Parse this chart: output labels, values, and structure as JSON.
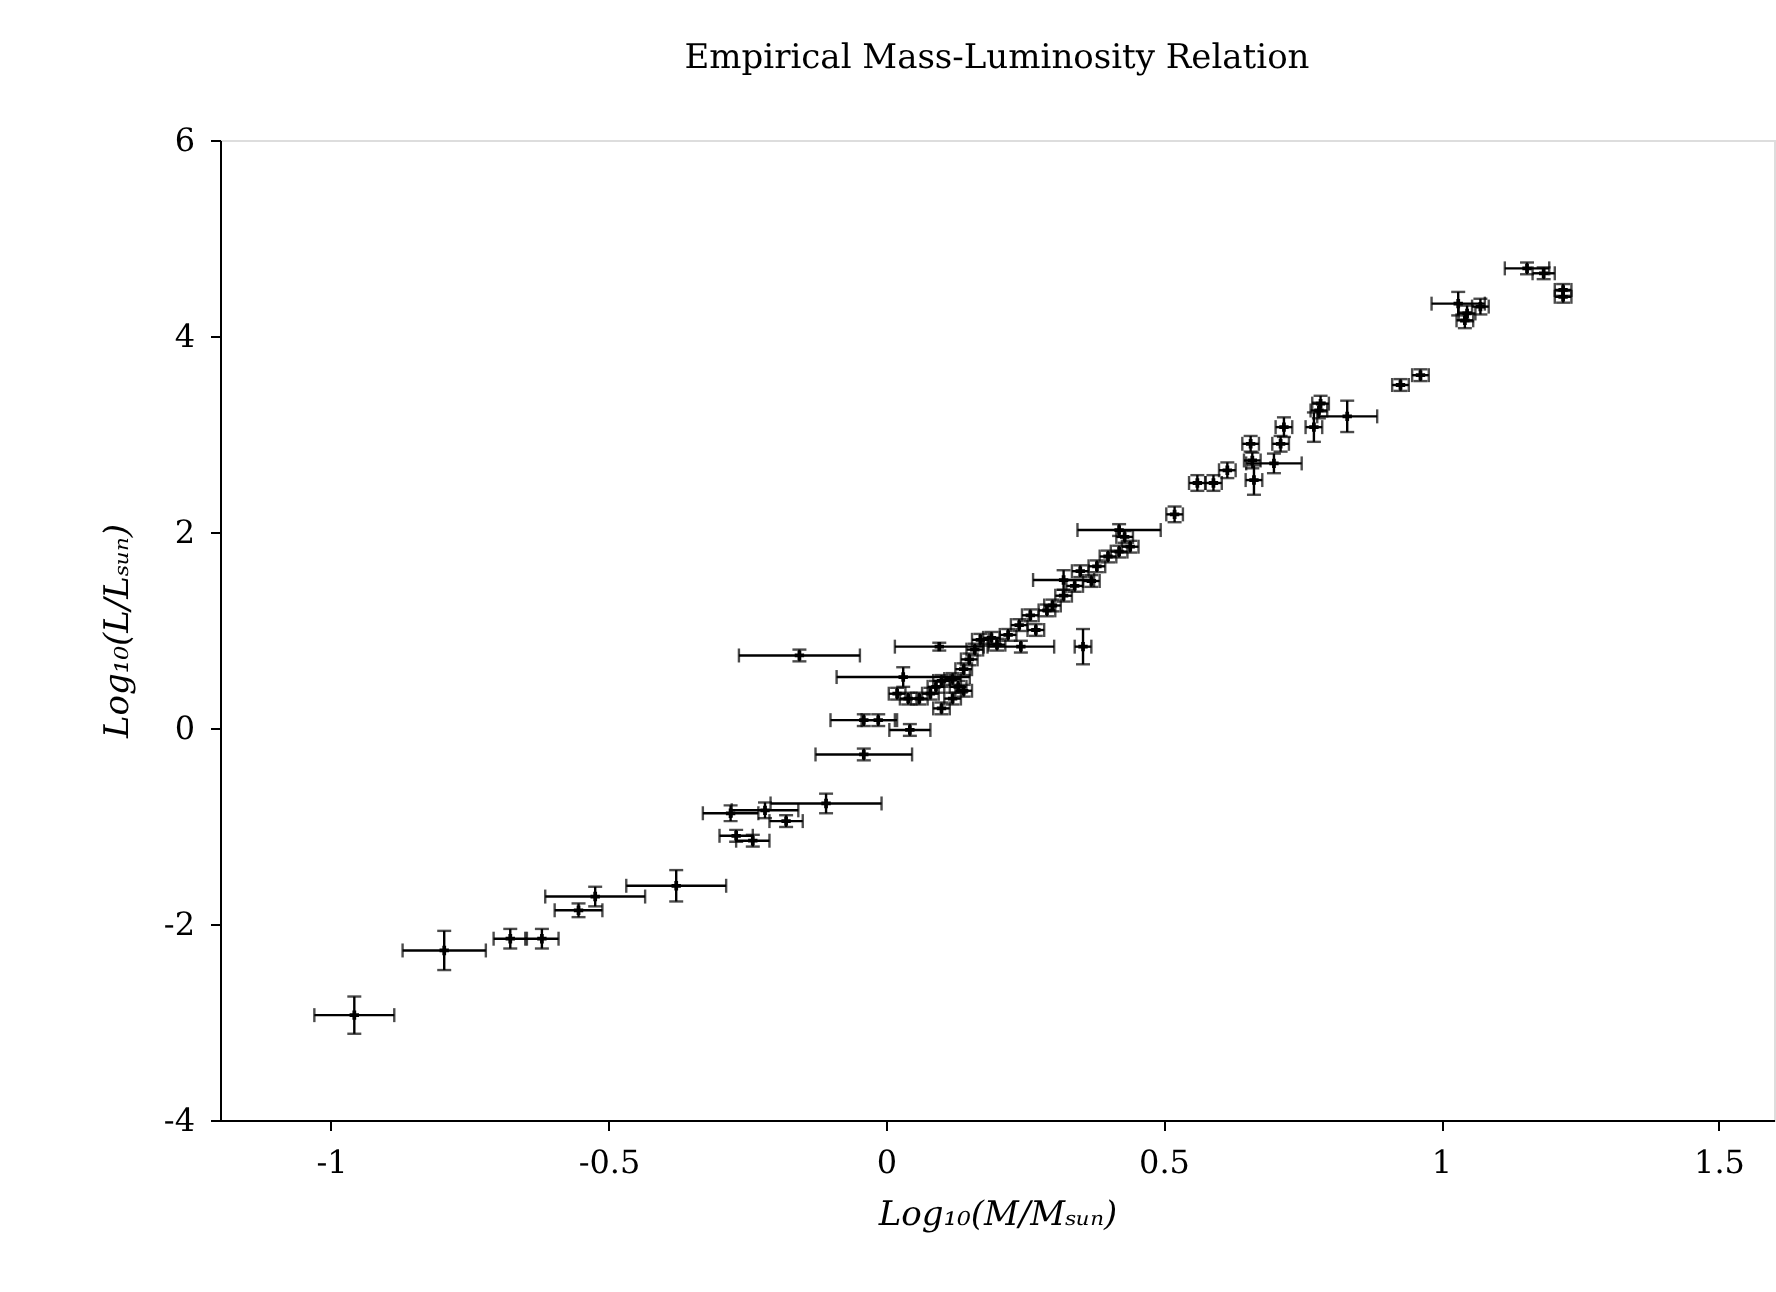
{
  "chart_data": {
    "type": "scatter",
    "title": "Empirical Mass-Luminosity Relation",
    "xlabel": "Log₁₀(M/Mₛᵤₙ)",
    "ylabel": "Log₁₀(L/Lₛᵤₙ)",
    "xlim": [
      -1.2,
      1.6
    ],
    "xticks": [
      -1,
      -0.5,
      0,
      0.5,
      1,
      1.5
    ],
    "ylim": [
      -4,
      6
    ],
    "yticks": [
      -4,
      -2,
      0,
      2,
      4,
      6
    ],
    "grid": false,
    "marker": "cross",
    "series": [
      {
        "color": "#000000",
        "x": [
          -0.958,
          -0.796,
          -0.677,
          -0.62,
          -0.554,
          -0.524,
          -0.378,
          -0.28,
          -0.27,
          -0.24,
          -0.218,
          -0.18,
          -0.108,
          -0.156,
          0.096,
          0.031,
          -0.04,
          -0.014,
          0.043,
          -0.04,
          0.243,
          0.355,
          0.32,
          0.42,
          0.02,
          0.04,
          0.06,
          0.08,
          0.09,
          0.1,
          0.12,
          0.13,
          0.14,
          0.15,
          0.16,
          0.17,
          0.19,
          0.2,
          0.22,
          0.24,
          0.26,
          0.27,
          0.29,
          0.3,
          0.32,
          0.34,
          0.35,
          0.37,
          0.38,
          0.4,
          0.42,
          0.43,
          0.44,
          0.1,
          0.12,
          0.14,
          0.52,
          0.561,
          0.59,
          0.615,
          0.657,
          0.663,
          0.66,
          0.699,
          0.711,
          0.717,
          0.771,
          0.78,
          0.783,
          0.831,
          0.927,
          0.963,
          1.031,
          1.043,
          1.047,
          1.071,
          1.155,
          1.185,
          1.22,
          1.22
        ],
        "values": [
          -2.93,
          -2.27,
          -2.15,
          -2.15,
          -1.86,
          -1.72,
          -1.61,
          -0.87,
          -1.1,
          -1.15,
          -0.84,
          -0.95,
          -0.77,
          0.74,
          0.83,
          0.52,
          0.08,
          0.08,
          -0.02,
          -0.27,
          0.83,
          0.83,
          1.51,
          2.02,
          0.35,
          0.3,
          0.3,
          0.35,
          0.42,
          0.48,
          0.5,
          0.42,
          0.6,
          0.7,
          0.8,
          0.9,
          0.92,
          0.85,
          0.95,
          1.05,
          1.15,
          1.0,
          1.2,
          1.25,
          1.35,
          1.45,
          1.6,
          1.5,
          1.65,
          1.75,
          1.8,
          1.95,
          1.85,
          0.2,
          0.3,
          0.38,
          2.18,
          2.5,
          2.5,
          2.63,
          2.9,
          2.53,
          2.73,
          2.7,
          2.9,
          3.07,
          3.07,
          3.24,
          3.31,
          3.18,
          3.5,
          3.6,
          4.33,
          4.16,
          4.23,
          4.3,
          4.69,
          4.64,
          4.47,
          4.4
        ],
        "xerrors": [
          0.072,
          0.075,
          0.03,
          0.03,
          0.043,
          0.09,
          0.09,
          0.05,
          0.03,
          0.03,
          0.06,
          0.03,
          0.1,
          0.109,
          0.08,
          0.12,
          0.06,
          0.03,
          0.037,
          0.087,
          0.06,
          0.015,
          0.055,
          0.075,
          0.015,
          0.015,
          0.015,
          0.015,
          0.015,
          0.015,
          0.015,
          0.015,
          0.015,
          0.015,
          0.015,
          0.015,
          0.015,
          0.015,
          0.015,
          0.015,
          0.015,
          0.015,
          0.015,
          0.015,
          0.015,
          0.015,
          0.015,
          0.015,
          0.015,
          0.015,
          0.015,
          0.015,
          0.015,
          0.015,
          0.015,
          0.015,
          0.015,
          0.015,
          0.015,
          0.015,
          0.015,
          0.015,
          0.015,
          0.05,
          0.015,
          0.015,
          0.015,
          0.015,
          0.015,
          0.054,
          0.015,
          0.015,
          0.048,
          0.015,
          0.015,
          0.015,
          0.04,
          0.02,
          0.015,
          0.015
        ],
        "errors": [
          0.19,
          0.2,
          0.1,
          0.1,
          0.07,
          0.1,
          0.16,
          0.08,
          0.06,
          0.06,
          0.08,
          0.06,
          0.1,
          0.06,
          0.04,
          0.1,
          0.06,
          0.06,
          0.06,
          0.06,
          0.06,
          0.18,
          0.1,
          0.06,
          0.06,
          0.06,
          0.06,
          0.06,
          0.06,
          0.06,
          0.06,
          0.06,
          0.06,
          0.06,
          0.06,
          0.06,
          0.06,
          0.06,
          0.06,
          0.06,
          0.06,
          0.06,
          0.06,
          0.06,
          0.06,
          0.06,
          0.06,
          0.06,
          0.06,
          0.06,
          0.06,
          0.06,
          0.06,
          0.06,
          0.06,
          0.06,
          0.08,
          0.08,
          0.08,
          0.08,
          0.08,
          0.15,
          0.08,
          0.1,
          0.08,
          0.1,
          0.15,
          0.08,
          0.08,
          0.16,
          0.06,
          0.06,
          0.12,
          0.08,
          0.08,
          0.08,
          0.06,
          0.06,
          0.06,
          0.06
        ]
      }
    ]
  }
}
